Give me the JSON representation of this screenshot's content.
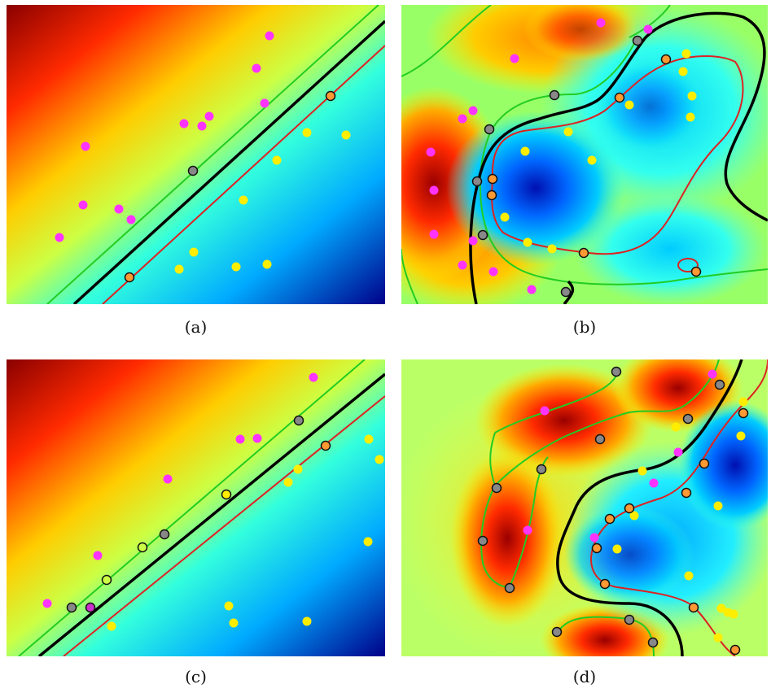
{
  "panels": [
    {
      "id": "a",
      "caption": "(a)"
    },
    {
      "id": "b",
      "caption": "(b)"
    },
    {
      "id": "c",
      "caption": "(c)"
    },
    {
      "id": "d",
      "caption": "(d)"
    }
  ],
  "colors": {
    "class_positive": "#ff33ff",
    "class_negative": "#ffee00",
    "support_vector_positive": "#888888",
    "support_vector_negative": "#ff9933",
    "decision_boundary": "#000000",
    "margin_positive": "#22cc22",
    "margin_negative": "#dd2222"
  }
}
